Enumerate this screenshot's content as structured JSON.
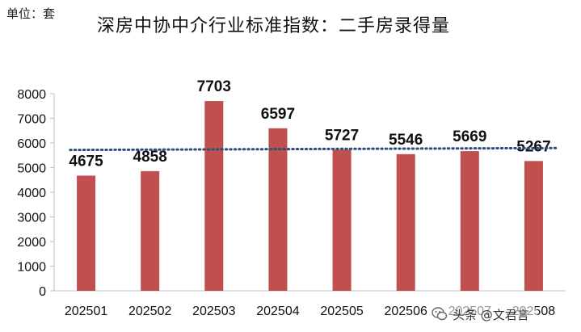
{
  "unit_label": "单位：套",
  "watermark": {
    "text": "头条 @文君言",
    "icon": "wechat-icon"
  },
  "colors": {
    "bar": "#C0504D",
    "trendline": "#2E4D7B",
    "axis": "#BFBFBF"
  },
  "chart_data": {
    "type": "bar",
    "title": "深房中协中介行业标准指数：二手房录得量",
    "xlabel": "",
    "ylabel": "",
    "categories": [
      "202501",
      "202502",
      "202503",
      "202504",
      "202505",
      "202506",
      "202507",
      "202508"
    ],
    "values": [
      4675,
      4858,
      7703,
      6597,
      5727,
      5546,
      5669,
      5267
    ],
    "ylim": [
      0,
      8000
    ],
    "yticks": [
      0,
      1000,
      2000,
      3000,
      4000,
      5000,
      6000,
      7000,
      8000
    ],
    "data_labels": true,
    "grid": false,
    "legend": "none",
    "trendline": {
      "type": "linear",
      "style": "dotted"
    }
  }
}
